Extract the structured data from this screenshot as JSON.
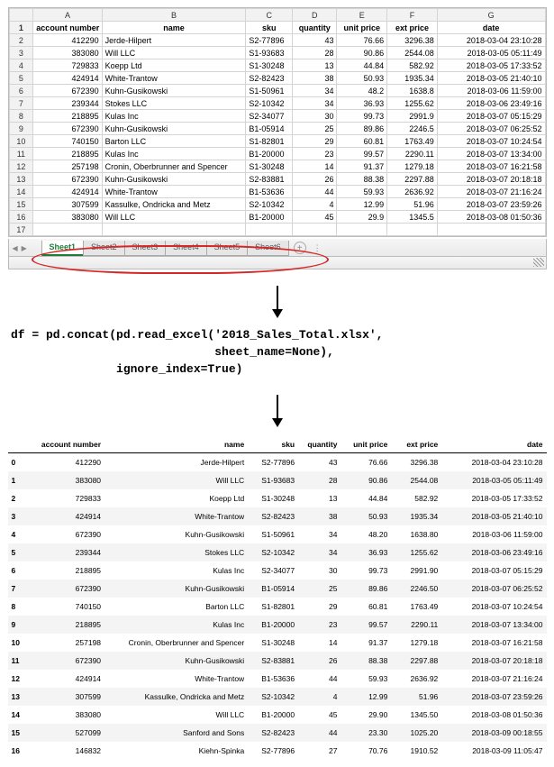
{
  "excel": {
    "col_letters": [
      "A",
      "B",
      "C",
      "D",
      "E",
      "F",
      "G"
    ],
    "headers": [
      "account number",
      "name",
      "sku",
      "quantity",
      "unit price",
      "ext price",
      "date"
    ],
    "rows": [
      {
        "r": 2,
        "acct": "412290",
        "name": "Jerde-Hilpert",
        "sku": "S2-77896",
        "qty": "43",
        "up": "76.66",
        "ep": "3296.38",
        "date": "2018-03-04 23:10:28"
      },
      {
        "r": 3,
        "acct": "383080",
        "name": "Will LLC",
        "sku": "S1-93683",
        "qty": "28",
        "up": "90.86",
        "ep": "2544.08",
        "date": "2018-03-05 05:11:49"
      },
      {
        "r": 4,
        "acct": "729833",
        "name": "Koepp Ltd",
        "sku": "S1-30248",
        "qty": "13",
        "up": "44.84",
        "ep": "582.92",
        "date": "2018-03-05 17:33:52"
      },
      {
        "r": 5,
        "acct": "424914",
        "name": "White-Trantow",
        "sku": "S2-82423",
        "qty": "38",
        "up": "50.93",
        "ep": "1935.34",
        "date": "2018-03-05 21:40:10"
      },
      {
        "r": 6,
        "acct": "672390",
        "name": "Kuhn-Gusikowski",
        "sku": "S1-50961",
        "qty": "34",
        "up": "48.2",
        "ep": "1638.8",
        "date": "2018-03-06 11:59:00"
      },
      {
        "r": 7,
        "acct": "239344",
        "name": "Stokes LLC",
        "sku": "S2-10342",
        "qty": "34",
        "up": "36.93",
        "ep": "1255.62",
        "date": "2018-03-06 23:49:16"
      },
      {
        "r": 8,
        "acct": "218895",
        "name": "Kulas Inc",
        "sku": "S2-34077",
        "qty": "30",
        "up": "99.73",
        "ep": "2991.9",
        "date": "2018-03-07 05:15:29"
      },
      {
        "r": 9,
        "acct": "672390",
        "name": "Kuhn-Gusikowski",
        "sku": "B1-05914",
        "qty": "25",
        "up": "89.86",
        "ep": "2246.5",
        "date": "2018-03-07 06:25:52"
      },
      {
        "r": 10,
        "acct": "740150",
        "name": "Barton LLC",
        "sku": "S1-82801",
        "qty": "29",
        "up": "60.81",
        "ep": "1763.49",
        "date": "2018-03-07 10:24:54"
      },
      {
        "r": 11,
        "acct": "218895",
        "name": "Kulas Inc",
        "sku": "B1-20000",
        "qty": "23",
        "up": "99.57",
        "ep": "2290.11",
        "date": "2018-03-07 13:34:00"
      },
      {
        "r": 12,
        "acct": "257198",
        "name": "Cronin, Oberbrunner and Spencer",
        "sku": "S1-30248",
        "qty": "14",
        "up": "91.37",
        "ep": "1279.18",
        "date": "2018-03-07 16:21:58"
      },
      {
        "r": 13,
        "acct": "672390",
        "name": "Kuhn-Gusikowski",
        "sku": "S2-83881",
        "qty": "26",
        "up": "88.38",
        "ep": "2297.88",
        "date": "2018-03-07 20:18:18"
      },
      {
        "r": 14,
        "acct": "424914",
        "name": "White-Trantow",
        "sku": "B1-53636",
        "qty": "44",
        "up": "59.93",
        "ep": "2636.92",
        "date": "2018-03-07 21:16:24"
      },
      {
        "r": 15,
        "acct": "307599",
        "name": "Kassulke, Ondricka and Metz",
        "sku": "S2-10342",
        "qty": "4",
        "up": "12.99",
        "ep": "51.96",
        "date": "2018-03-07 23:59:26"
      },
      {
        "r": 16,
        "acct": "383080",
        "name": "Will LLC",
        "sku": "B1-20000",
        "qty": "45",
        "up": "29.9",
        "ep": "1345.5",
        "date": "2018-03-08 01:50:36"
      }
    ],
    "tabs": [
      "Sheet1",
      "Sheet2",
      "Sheet3",
      "Sheet4",
      "Sheet5",
      "Sheet6"
    ],
    "active_tab_index": 0,
    "colors": {
      "grid": "#d4d4d4",
      "header_bg": "#f2f2f2",
      "tab_active": "#1a7f37",
      "ellipse": "#d62728"
    }
  },
  "code": {
    "line1": "df = pd.concat(pd.read_excel('2018_Sales_Total.xlsx',",
    "line2": "                             sheet_name=None),",
    "line3": "               ignore_index=True)"
  },
  "pandas": {
    "columns": [
      "",
      "account number",
      "name",
      "sku",
      "quantity",
      "unit price",
      "ext price",
      "date"
    ],
    "rows": [
      [
        "0",
        "412290",
        "Jerde-Hilpert",
        "S2-77896",
        "43",
        "76.66",
        "3296.38",
        "2018-03-04 23:10:28"
      ],
      [
        "1",
        "383080",
        "Will LLC",
        "S1-93683",
        "28",
        "90.86",
        "2544.08",
        "2018-03-05 05:11:49"
      ],
      [
        "2",
        "729833",
        "Koepp Ltd",
        "S1-30248",
        "13",
        "44.84",
        "582.92",
        "2018-03-05 17:33:52"
      ],
      [
        "3",
        "424914",
        "White-Trantow",
        "S2-82423",
        "38",
        "50.93",
        "1935.34",
        "2018-03-05 21:40:10"
      ],
      [
        "4",
        "672390",
        "Kuhn-Gusikowski",
        "S1-50961",
        "34",
        "48.20",
        "1638.80",
        "2018-03-06 11:59:00"
      ],
      [
        "5",
        "239344",
        "Stokes LLC",
        "S2-10342",
        "34",
        "36.93",
        "1255.62",
        "2018-03-06 23:49:16"
      ],
      [
        "6",
        "218895",
        "Kulas Inc",
        "S2-34077",
        "30",
        "99.73",
        "2991.90",
        "2018-03-07 05:15:29"
      ],
      [
        "7",
        "672390",
        "Kuhn-Gusikowski",
        "B1-05914",
        "25",
        "89.86",
        "2246.50",
        "2018-03-07 06:25:52"
      ],
      [
        "8",
        "740150",
        "Barton LLC",
        "S1-82801",
        "29",
        "60.81",
        "1763.49",
        "2018-03-07 10:24:54"
      ],
      [
        "9",
        "218895",
        "Kulas Inc",
        "B1-20000",
        "23",
        "99.57",
        "2290.11",
        "2018-03-07 13:34:00"
      ],
      [
        "10",
        "257198",
        "Cronin, Oberbrunner and Spencer",
        "S1-30248",
        "14",
        "91.37",
        "1279.18",
        "2018-03-07 16:21:58"
      ],
      [
        "11",
        "672390",
        "Kuhn-Gusikowski",
        "S2-83881",
        "26",
        "88.38",
        "2297.88",
        "2018-03-07 20:18:18"
      ],
      [
        "12",
        "424914",
        "White-Trantow",
        "B1-53636",
        "44",
        "59.93",
        "2636.92",
        "2018-03-07 21:16:24"
      ],
      [
        "13",
        "307599",
        "Kassulke, Ondricka and Metz",
        "S2-10342",
        "4",
        "12.99",
        "51.96",
        "2018-03-07 23:59:26"
      ],
      [
        "14",
        "383080",
        "Will LLC",
        "B1-20000",
        "45",
        "29.90",
        "1345.50",
        "2018-03-08 01:50:36"
      ],
      [
        "15",
        "527099",
        "Sanford and Sons",
        "S2-82423",
        "44",
        "23.30",
        "1025.20",
        "2018-03-09 00:18:55"
      ],
      [
        "16",
        "146832",
        "Kiehn-Spinka",
        "S2-77896",
        "27",
        "70.76",
        "1910.52",
        "2018-03-09 11:05:47"
      ]
    ],
    "stripe_color": "#f4f4f4"
  }
}
